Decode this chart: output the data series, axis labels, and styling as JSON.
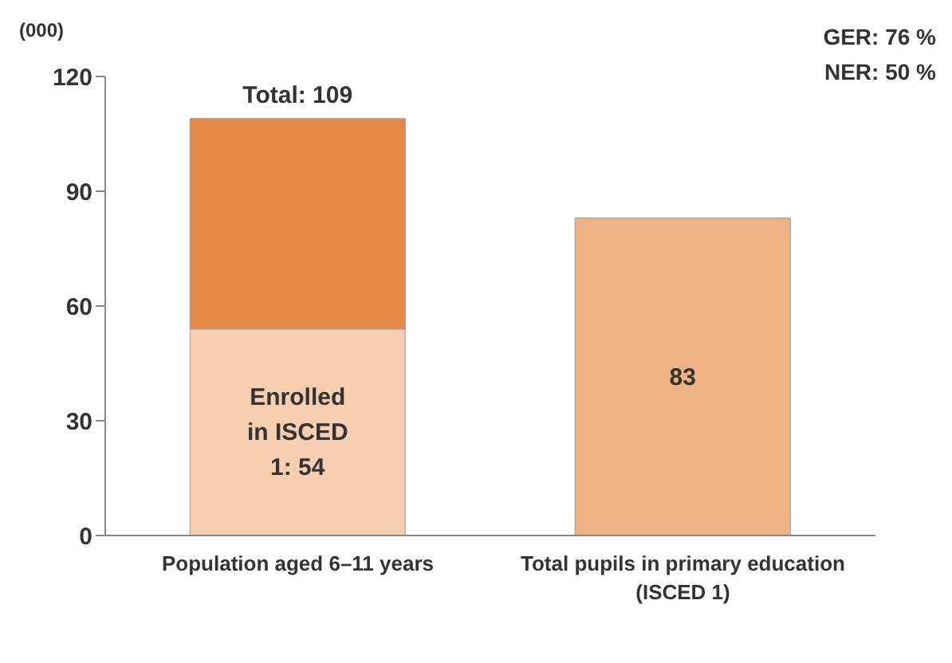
{
  "chart_data": {
    "type": "bar",
    "stacked": true,
    "ylabel": "(000)",
    "categories": [
      "Population aged 6–11 years",
      "Total pupils in primary education (ISCED 1)"
    ],
    "series": [
      {
        "color": "#f6cfb1",
        "values": [
          54,
          null
        ],
        "value_labels": [
          "Enrolled in ISCED 1: 54",
          null
        ]
      },
      {
        "color": "#e58b47",
        "values": [
          55,
          null
        ]
      },
      {
        "color": "#efb283",
        "values": [
          null,
          83
        ],
        "value_labels": [
          null,
          "83"
        ]
      }
    ],
    "totals": [
      "Total: 109",
      null
    ],
    "ylim": [
      0,
      120
    ],
    "yticks": [
      0,
      30,
      60,
      90,
      120
    ],
    "annotations": [
      "GER: 76 %",
      "NER: 50 %"
    ]
  }
}
